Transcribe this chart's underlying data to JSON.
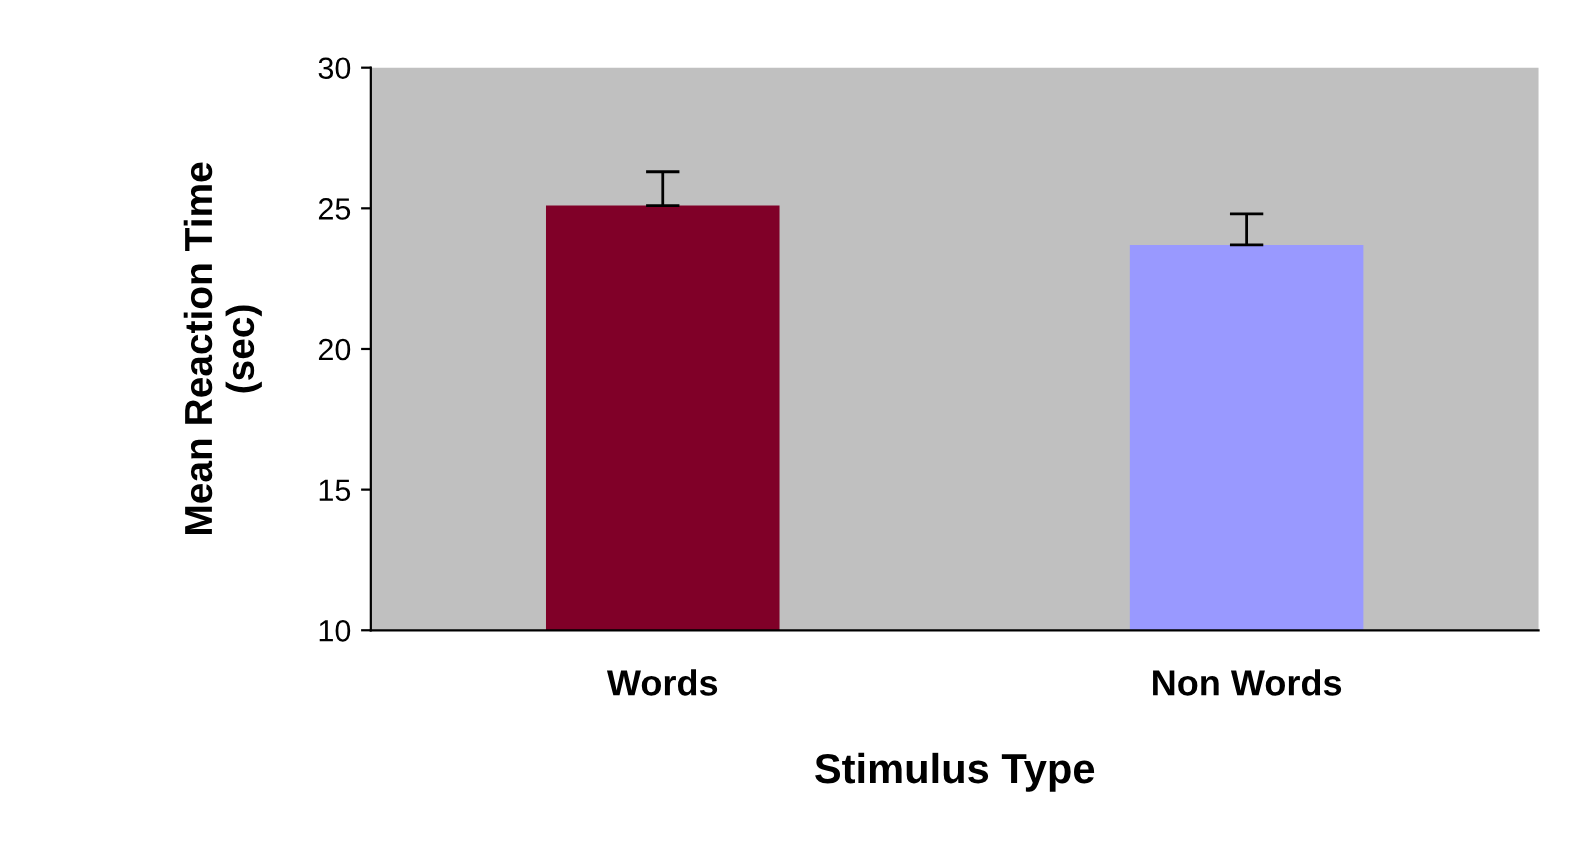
{
  "chart_data": {
    "type": "bar",
    "xlabel": "Stimulus Type",
    "ylabel": "Mean Reaction Time\n(sec)",
    "categories": [
      "Words",
      "Non Words"
    ],
    "values": [
      25.1,
      23.7
    ],
    "colors": [
      "#800028",
      "#9999ff"
    ],
    "errors": [
      [
        25.1,
        26.3
      ],
      [
        23.7,
        24.8
      ]
    ],
    "ylim": [
      10,
      30
    ],
    "yticks": [
      10,
      15,
      20,
      25,
      30
    ],
    "grid": false,
    "legend": false
  }
}
